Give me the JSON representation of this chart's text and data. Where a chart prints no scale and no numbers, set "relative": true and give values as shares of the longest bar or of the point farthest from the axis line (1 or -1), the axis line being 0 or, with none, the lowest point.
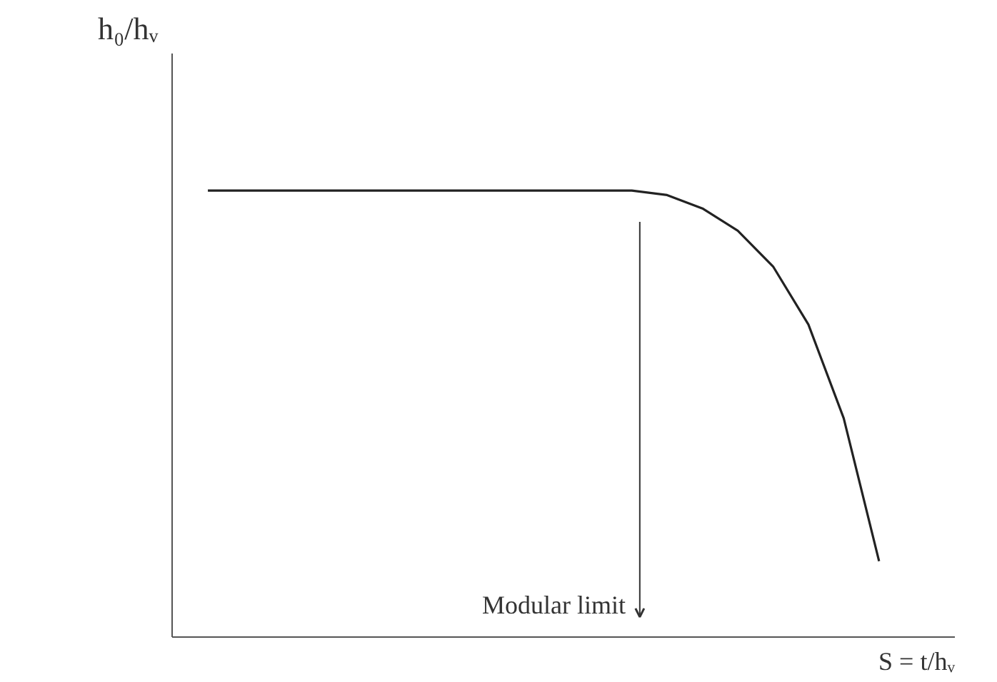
{
  "chart_data": {
    "type": "line",
    "relative": true,
    "xlabel": "S = t/hᵥ",
    "ylabel": "h₀/hᵥ",
    "categories": [
      null,
      null,
      null,
      null,
      null,
      null,
      null,
      null,
      null,
      null,
      null,
      null,
      null,
      null,
      null,
      null,
      null,
      null,
      null,
      null
    ],
    "series": [
      {
        "color": "#222222",
        "values": [
          1,
          1,
          1,
          1,
          1,
          1,
          1,
          1,
          1,
          1,
          1,
          1,
          1,
          0.99,
          0.96,
          0.91,
          0.83,
          0.7,
          0.49,
          0.17
        ]
      }
    ],
    "annotations": [
      "Modular limit"
    ],
    "line_style": "solid"
  }
}
